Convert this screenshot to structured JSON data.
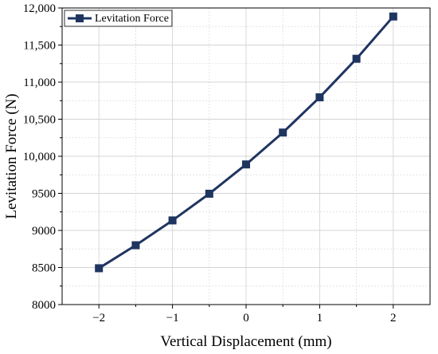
{
  "chart_data": {
    "type": "line",
    "title": "",
    "xlabel": "Vertical Displacement (mm)",
    "ylabel": "Levitation Force (N)",
    "xlim": [
      -2.5,
      2.5
    ],
    "ylim": [
      8000,
      12000
    ],
    "x_ticks": [
      -2,
      -1,
      0,
      1,
      2
    ],
    "x_tick_labels": [
      "−2",
      "−1",
      "0",
      "1",
      "2"
    ],
    "y_ticks": [
      8000,
      8500,
      9000,
      9500,
      10000,
      10500,
      11000,
      11500,
      12000
    ],
    "y_tick_labels": [
      "8000",
      "8500",
      "9000",
      "9500",
      "10,000",
      "10,500",
      "11,000",
      "11,500",
      "12,000"
    ],
    "grid": true,
    "legend_position": "top-left",
    "series": [
      {
        "name": "Levitation Force",
        "color": "#1f3560",
        "marker": "square",
        "x": [
          -2,
          -1.5,
          -1,
          -0.5,
          0,
          0.5,
          1,
          1.5,
          2
        ],
        "y": [
          8490,
          8800,
          9135,
          9495,
          9890,
          10320,
          10795,
          11315,
          11885
        ]
      }
    ]
  }
}
